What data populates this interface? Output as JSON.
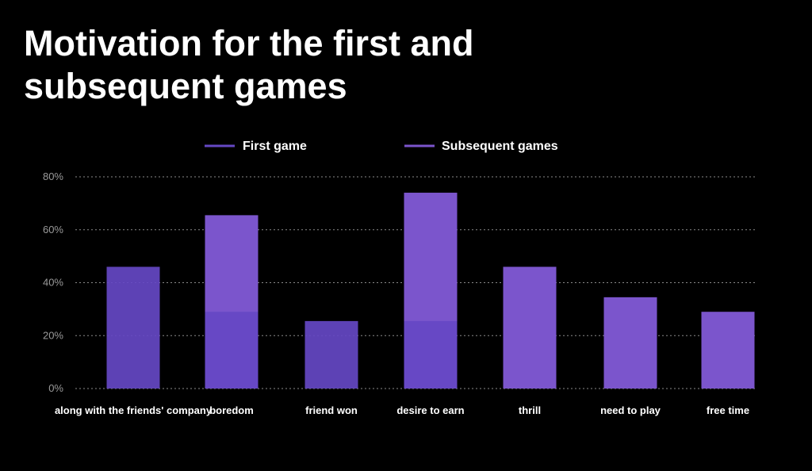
{
  "title": {
    "line1": "Motivation for the first and",
    "line2": "subsequent games"
  },
  "colors": {
    "background": "#000000",
    "first_game": "#6548c4",
    "subsequent_games": "#7b55cc",
    "grid": "#8a8a8a",
    "tick_text": "#9a9a9a"
  },
  "chart_data": {
    "type": "bar",
    "title": "Motivation for the first and subsequent games",
    "xlabel": "",
    "ylabel": "",
    "ylim": [
      0,
      80
    ],
    "y_unit": "%",
    "y_ticks": [
      "0%",
      "20%",
      "40%",
      "60%",
      "80%"
    ],
    "y_tick_values": [
      0,
      20,
      40,
      60,
      80
    ],
    "grid": true,
    "grid_style": "dotted",
    "legend_position": "top",
    "categories": [
      "along with the friends' company",
      "boredom",
      "friend won",
      "desire to earn",
      "thrill",
      "need to play",
      "free time"
    ],
    "series": [
      {
        "name": "First game",
        "color": "#6548c4",
        "values": [
          46,
          29,
          25.5,
          25.5,
          null,
          null,
          null
        ]
      },
      {
        "name": "Subsequent games",
        "color": "#7b55cc",
        "values": [
          null,
          65.5,
          null,
          74,
          46,
          34.5,
          29
        ]
      }
    ],
    "annotations": []
  }
}
